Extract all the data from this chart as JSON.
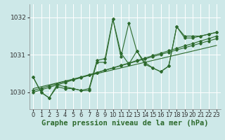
{
  "background_color": "#cde8e8",
  "grid_color": "#ffffff",
  "line_color": "#2d6a2d",
  "xlabel": "Graphe pression niveau de la mer (hPa)",
  "xlabel_fontsize": 7.5,
  "ylabel_fontsize": 6.5,
  "tick_fontsize": 6,
  "xlim": [
    -0.5,
    23.5
  ],
  "ylim": [
    1029.55,
    1032.35
  ],
  "yticks": [
    1030,
    1031,
    1032
  ],
  "xticks": [
    0,
    1,
    2,
    3,
    4,
    5,
    6,
    7,
    8,
    9,
    10,
    11,
    12,
    13,
    14,
    15,
    16,
    17,
    18,
    19,
    20,
    21,
    22,
    23
  ],
  "series1_y": [
    1030.4,
    1030.0,
    1029.85,
    1030.15,
    1030.1,
    1030.1,
    1030.05,
    1030.05,
    1030.8,
    1030.8,
    1031.95,
    1030.95,
    1031.85,
    1031.1,
    1030.75,
    1030.65,
    1030.55,
    1030.7,
    1031.75,
    1031.45,
    1031.45,
    1031.5,
    1031.55,
    1031.6
  ],
  "trend1_y": [
    1030.0,
    1030.07,
    1030.13,
    1030.2,
    1030.26,
    1030.33,
    1030.39,
    1030.46,
    1030.52,
    1030.59,
    1030.65,
    1030.72,
    1030.78,
    1030.85,
    1030.91,
    1030.98,
    1031.04,
    1031.11,
    1031.17,
    1031.24,
    1031.3,
    1031.37,
    1031.43,
    1031.5
  ],
  "trend2_y": [
    1030.05,
    1030.11,
    1030.17,
    1030.23,
    1030.29,
    1030.35,
    1030.41,
    1030.47,
    1030.53,
    1030.59,
    1030.65,
    1030.71,
    1030.77,
    1030.83,
    1030.89,
    1030.95,
    1031.01,
    1031.07,
    1031.13,
    1031.19,
    1031.25,
    1031.31,
    1031.37,
    1031.43
  ],
  "trend3_y": [
    1030.1,
    1030.15,
    1030.2,
    1030.25,
    1030.3,
    1030.35,
    1030.4,
    1030.45,
    1030.5,
    1030.55,
    1030.6,
    1030.65,
    1030.7,
    1030.75,
    1030.8,
    1030.85,
    1030.9,
    1030.95,
    1031.0,
    1031.05,
    1031.1,
    1031.15,
    1031.2,
    1031.25
  ],
  "main_y": [
    1030.4,
    1030.0,
    1029.85,
    1030.2,
    1030.15,
    1030.1,
    1030.05,
    1030.1,
    1030.85,
    1030.9,
    1031.95,
    1031.05,
    1030.75,
    1031.1,
    1030.8,
    1030.65,
    1030.55,
    1030.7,
    1031.75,
    1031.5,
    1031.5,
    1031.5,
    1031.55,
    1031.6
  ]
}
